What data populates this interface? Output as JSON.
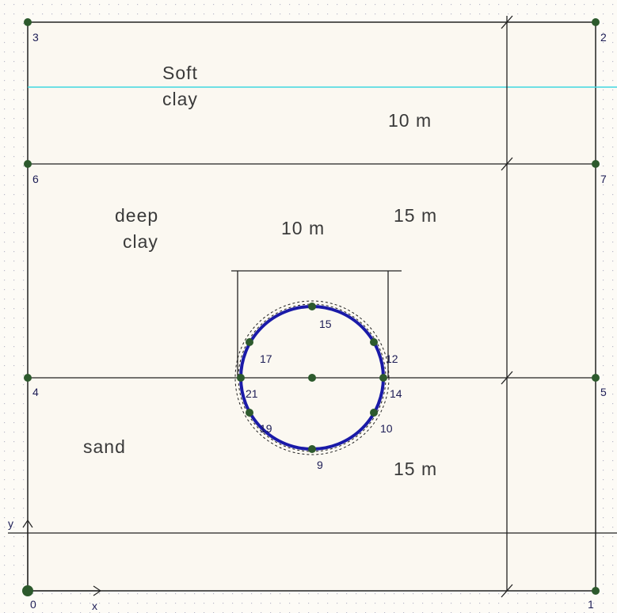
{
  "layers": [
    {
      "lines": [
        "Soft",
        "clay"
      ]
    },
    {
      "lines": [
        "deep",
        "clay"
      ]
    },
    {
      "lines": [
        "sand"
      ]
    }
  ],
  "dimensions": [
    "10 m",
    "10 m",
    "15 m",
    "15 m"
  ],
  "nodes": [
    "0",
    "1",
    "2",
    "3",
    "4",
    "5",
    "6",
    "7",
    "15",
    "17",
    "12",
    "21",
    "14",
    "19",
    "10",
    "9"
  ],
  "axes": {
    "x": "x",
    "y": "y"
  }
}
